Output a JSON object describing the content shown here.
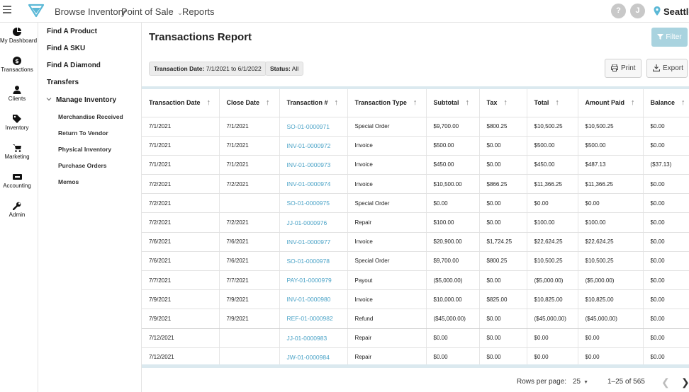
{
  "header": {
    "nav": [
      "Browse Inventory",
      "Point of Sale",
      "Reports"
    ],
    "help_label": "?",
    "user_initial": "J",
    "location": "Seattle"
  },
  "rail": [
    {
      "label": "My Dashboard",
      "icon": "pie-chart-icon"
    },
    {
      "label": "Transactions",
      "icon": "dollar-icon"
    },
    {
      "label": "Clients",
      "icon": "person-icon"
    },
    {
      "label": "Inventory",
      "icon": "tag-icon"
    },
    {
      "label": "Marketing",
      "icon": "cart-icon"
    },
    {
      "label": "Accounting",
      "icon": "money-icon"
    },
    {
      "label": "Admin",
      "icon": "wrench-icon"
    }
  ],
  "subnav": {
    "items": [
      "Find A Product",
      "Find A SKU",
      "Find A Diamond",
      "Transfers",
      "Manage Inventory"
    ],
    "children": [
      "Merchandise Received",
      "Return To Vendor",
      "Physical Inventory",
      "Purchase Orders",
      "Memos"
    ]
  },
  "page": {
    "title": "Transactions Report",
    "filter_label": "Filter",
    "print_label": "Print",
    "export_label": "Export",
    "chips": [
      {
        "key": "Transaction Date:",
        "value": "7/1/2021 to 6/1/2022"
      },
      {
        "key": "Status:",
        "value": "All"
      }
    ]
  },
  "table": {
    "columns": [
      "Transaction Date",
      "Close Date",
      "Transaction #",
      "Transaction Type",
      "Subtotal",
      "Tax",
      "Total",
      "Amount Paid",
      "Balance"
    ],
    "rows": [
      [
        "7/1/2021",
        "7/1/2021",
        "SO-01-0000971",
        "Special Order",
        "$9,700.00",
        "$800.25",
        "$10,500.25",
        "$10,500.25",
        "$0.00"
      ],
      [
        "7/1/2021",
        "7/1/2021",
        "INV-01-0000972",
        "Invoice",
        "$500.00",
        "$0.00",
        "$500.00",
        "$500.00",
        "$0.00"
      ],
      [
        "7/1/2021",
        "7/1/2021",
        "INV-01-0000973",
        "Invoice",
        "$450.00",
        "$0.00",
        "$450.00",
        "$487.13",
        "($37.13)"
      ],
      [
        "7/2/2021",
        "7/2/2021",
        "INV-01-0000974",
        "Invoice",
        "$10,500.00",
        "$866.25",
        "$11,366.25",
        "$11,366.25",
        "$0.00"
      ],
      [
        "7/2/2021",
        "",
        "SO-01-0000975",
        "Special Order",
        "$0.00",
        "$0.00",
        "$0.00",
        "$0.00",
        "$0.00"
      ],
      [
        "7/2/2021",
        "7/2/2021",
        "JJ-01-0000976",
        "Repair",
        "$100.00",
        "$0.00",
        "$100.00",
        "$100.00",
        "$0.00"
      ],
      [
        "7/6/2021",
        "7/6/2021",
        "INV-01-0000977",
        "Invoice",
        "$20,900.00",
        "$1,724.25",
        "$22,624.25",
        "$22,624.25",
        "$0.00"
      ],
      [
        "7/6/2021",
        "7/6/2021",
        "SO-01-0000978",
        "Special Order",
        "$9,700.00",
        "$800.25",
        "$10,500.25",
        "$10,500.25",
        "$0.00"
      ],
      [
        "7/7/2021",
        "7/7/2021",
        "PAY-01-0000979",
        "Payout",
        "($5,000.00)",
        "$0.00",
        "($5,000.00)",
        "($5,000.00)",
        "$0.00"
      ],
      [
        "7/9/2021",
        "7/9/2021",
        "INV-01-0000980",
        "Invoice",
        "$10,000.00",
        "$825.00",
        "$10,825.00",
        "$10,825.00",
        "$0.00"
      ],
      [
        "7/9/2021",
        "7/9/2021",
        "REF-01-0000982",
        "Refund",
        "($45,000.00)",
        "$0.00",
        "($45,000.00)",
        "($45,000.00)",
        "$0.00"
      ],
      [
        "7/12/2021",
        "",
        "JJ-01-0000983",
        "Repair",
        "$0.00",
        "$0.00",
        "$0.00",
        "$0.00",
        "$0.00"
      ],
      [
        "7/12/2021",
        "",
        "JW-01-0000984",
        "Repair",
        "$0.00",
        "$0.00",
        "$0.00",
        "$0.00",
        "$0.00"
      ]
    ]
  },
  "footer": {
    "rows_per_page_label": "Rows per page:",
    "rows_per_page_value": "25",
    "range": "1–25 of 565"
  },
  "colors": {
    "accent": "#4ba3c7",
    "filter_button": "#a9d3df",
    "logo": "#5bb8d6"
  }
}
